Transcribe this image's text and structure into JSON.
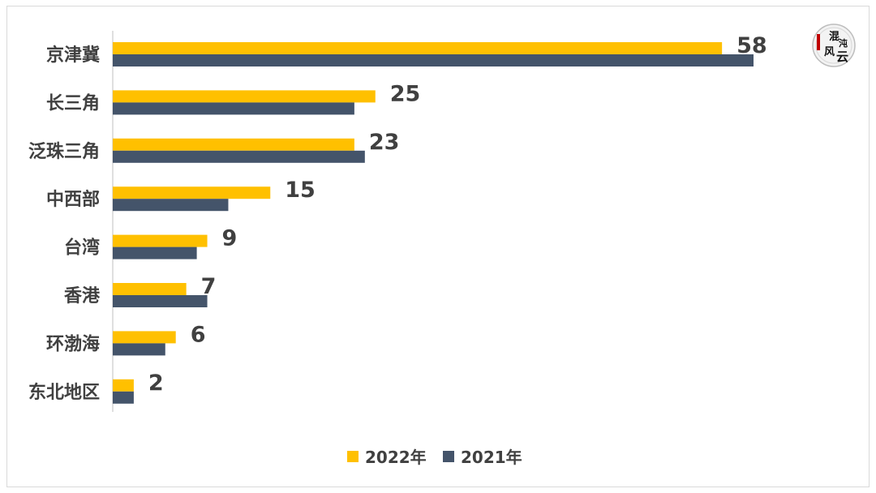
{
  "chart_data": {
    "type": "bar",
    "orientation": "horizontal",
    "categories": [
      "京津冀",
      "长三角",
      "泛珠三角",
      "中西部",
      "台湾",
      "香港",
      "环渤海",
      "东北地区"
    ],
    "series": [
      {
        "name": "2022年",
        "color": "#FFC000",
        "values": [
          58,
          25,
          23,
          15,
          9,
          7,
          6,
          2
        ]
      },
      {
        "name": "2021年",
        "color": "#44546A",
        "values": [
          61,
          23,
          24,
          11,
          8,
          9,
          5,
          2
        ]
      }
    ],
    "data_labels": [
      "58",
      "25",
      "23",
      "15",
      "9",
      "7",
      "6",
      "2"
    ],
    "xlim": [
      0,
      65
    ],
    "grid": false,
    "legend_position": "bottom"
  },
  "logo": {
    "icon": "seal-logo-icon",
    "text": "混沌风云"
  }
}
